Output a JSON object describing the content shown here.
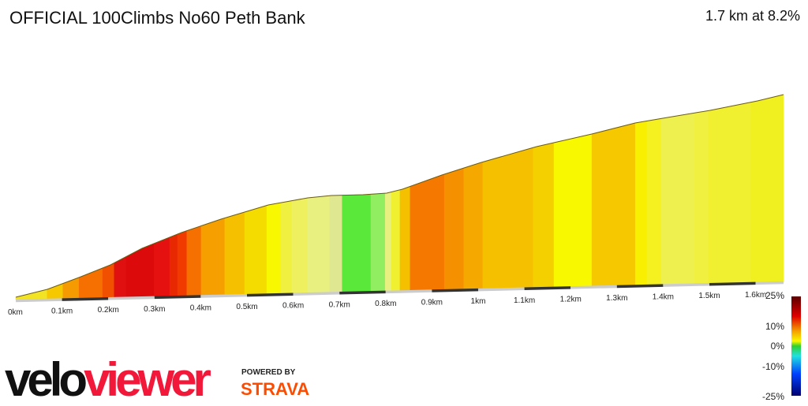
{
  "header": {
    "title": "OFFICIAL 100Climbs No60 Peth Bank",
    "summary": "1.7 km at 8.2%"
  },
  "chart_data": {
    "type": "area",
    "title": "OFFICIAL 100Climbs No60 Peth Bank",
    "xlabel": "",
    "ylabel": "",
    "x_ticks": [
      "0km",
      "0.1km",
      "0.2km",
      "0.3km",
      "0.4km",
      "0.5km",
      "0.6km",
      "0.7km",
      "0.8km",
      "0.9km",
      "1km",
      "1.1km",
      "1.2km",
      "1.3km",
      "1.4km",
      "1.5km",
      "1.6km"
    ],
    "xlim": [
      0,
      1.66
    ],
    "segments": [
      {
        "from": 0,
        "to": 0.068,
        "color": "#f2e424"
      },
      {
        "from": 0.068,
        "to": 0.102,
        "color": "#f5c800"
      },
      {
        "from": 0.102,
        "to": 0.137,
        "color": "#f59a00"
      },
      {
        "from": 0.137,
        "to": 0.188,
        "color": "#f57000"
      },
      {
        "from": 0.188,
        "to": 0.213,
        "color": "#f05000"
      },
      {
        "from": 0.213,
        "to": 0.239,
        "color": "#e01010"
      },
      {
        "from": 0.239,
        "to": 0.299,
        "color": "#dc0a0a"
      },
      {
        "from": 0.299,
        "to": 0.333,
        "color": "#e51010"
      },
      {
        "from": 0.333,
        "to": 0.35,
        "color": "#e82800"
      },
      {
        "from": 0.35,
        "to": 0.37,
        "color": "#f03a00"
      },
      {
        "from": 0.37,
        "to": 0.401,
        "color": "#f57000"
      },
      {
        "from": 0.401,
        "to": 0.452,
        "color": "#f5a000"
      },
      {
        "from": 0.452,
        "to": 0.495,
        "color": "#f5c000"
      },
      {
        "from": 0.495,
        "to": 0.543,
        "color": "#f5dc00"
      },
      {
        "from": 0.543,
        "to": 0.572,
        "color": "#f8f800"
      },
      {
        "from": 0.572,
        "to": 0.597,
        "color": "#f0f040"
      },
      {
        "from": 0.597,
        "to": 0.631,
        "color": "#eef060"
      },
      {
        "from": 0.631,
        "to": 0.679,
        "color": "#e8f080"
      },
      {
        "from": 0.679,
        "to": 0.706,
        "color": "#dfe890"
      },
      {
        "from": 0.706,
        "to": 0.768,
        "color": "#5ae83a"
      },
      {
        "from": 0.768,
        "to": 0.799,
        "color": "#90ee60"
      },
      {
        "from": 0.799,
        "to": 0.812,
        "color": "#e8f080"
      },
      {
        "from": 0.812,
        "to": 0.831,
        "color": "#f0f030"
      },
      {
        "from": 0.831,
        "to": 0.853,
        "color": "#f5c000"
      },
      {
        "from": 0.853,
        "to": 0.927,
        "color": "#f57800"
      },
      {
        "from": 0.927,
        "to": 0.969,
        "color": "#f59000"
      },
      {
        "from": 0.969,
        "to": 1.01,
        "color": "#f5a800"
      },
      {
        "from": 1.01,
        "to": 1.119,
        "color": "#f5c000"
      },
      {
        "from": 1.119,
        "to": 1.164,
        "color": "#f5d000"
      },
      {
        "from": 1.164,
        "to": 1.246,
        "color": "#f8f800"
      },
      {
        "from": 1.246,
        "to": 1.34,
        "color": "#f5c800"
      },
      {
        "from": 1.34,
        "to": 1.365,
        "color": "#f8f000"
      },
      {
        "from": 1.365,
        "to": 1.396,
        "color": "#f5f020"
      },
      {
        "from": 1.396,
        "to": 1.468,
        "color": "#eef050"
      },
      {
        "from": 1.468,
        "to": 1.498,
        "color": "#f0f040"
      },
      {
        "from": 1.498,
        "to": 1.59,
        "color": "#f0f030"
      },
      {
        "from": 1.59,
        "to": 1.66,
        "color": "#f0f020"
      }
    ],
    "legend": {
      "labels": [
        "25%",
        "10%",
        "0%",
        "-10%",
        "-25%"
      ],
      "placement": "right"
    }
  },
  "logo": {
    "part1": "velo",
    "part2": "viewer",
    "powered": "POWERED BY",
    "strava": "STRAVA"
  }
}
